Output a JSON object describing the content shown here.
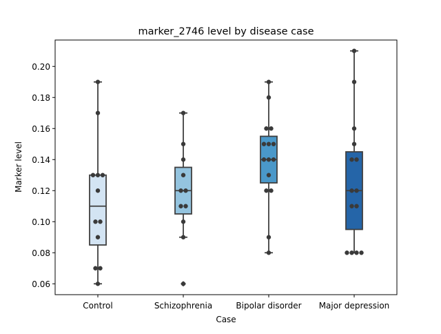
{
  "chart_data": {
    "type": "box",
    "title": "marker_2746 level by disease case",
    "xlabel": "Case",
    "ylabel": "Marker level",
    "categories": [
      "Control",
      "Schizophrenia",
      "Bipolar disorder",
      "Major depression"
    ],
    "ylim": [
      0.053,
      0.217
    ],
    "yticks": [
      0.06,
      0.08,
      0.1,
      0.12,
      0.14,
      0.16,
      0.18,
      0.2
    ],
    "ytick_labels": [
      "0.06",
      "0.08",
      "0.10",
      "0.12",
      "0.14",
      "0.16",
      "0.18",
      "0.20"
    ],
    "grid": false,
    "box_colors": [
      "#d3e4f3",
      "#94c4df",
      "#4a98c9",
      "#2565a8"
    ],
    "boxes": [
      {
        "q1": 0.085,
        "median": 0.11,
        "q3": 0.13,
        "whisker_low": 0.06,
        "whisker_high": 0.19,
        "outliers": []
      },
      {
        "q1": 0.105,
        "median": 0.12,
        "q3": 0.135,
        "whisker_low": 0.09,
        "whisker_high": 0.17,
        "outliers": [
          0.06
        ]
      },
      {
        "q1": 0.125,
        "median": 0.14,
        "q3": 0.155,
        "whisker_low": 0.08,
        "whisker_high": 0.19,
        "outliers": []
      },
      {
        "q1": 0.095,
        "median": 0.12,
        "q3": 0.145,
        "whisker_low": 0.08,
        "whisker_high": 0.21,
        "outliers": []
      }
    ],
    "points": [
      [
        0.06,
        0.07,
        0.07,
        0.09,
        0.1,
        0.1,
        0.12,
        0.13,
        0.13,
        0.13,
        0.17,
        0.19
      ],
      [
        0.06,
        0.09,
        0.1,
        0.11,
        0.11,
        0.12,
        0.12,
        0.13,
        0.14,
        0.15,
        0.17
      ],
      [
        0.08,
        0.09,
        0.12,
        0.12,
        0.13,
        0.14,
        0.14,
        0.14,
        0.15,
        0.15,
        0.15,
        0.16,
        0.16,
        0.18,
        0.19
      ],
      [
        0.08,
        0.08,
        0.08,
        0.08,
        0.11,
        0.11,
        0.12,
        0.12,
        0.14,
        0.14,
        0.15,
        0.16,
        0.19,
        0.21
      ]
    ],
    "point_color": "#3a3a3a"
  }
}
